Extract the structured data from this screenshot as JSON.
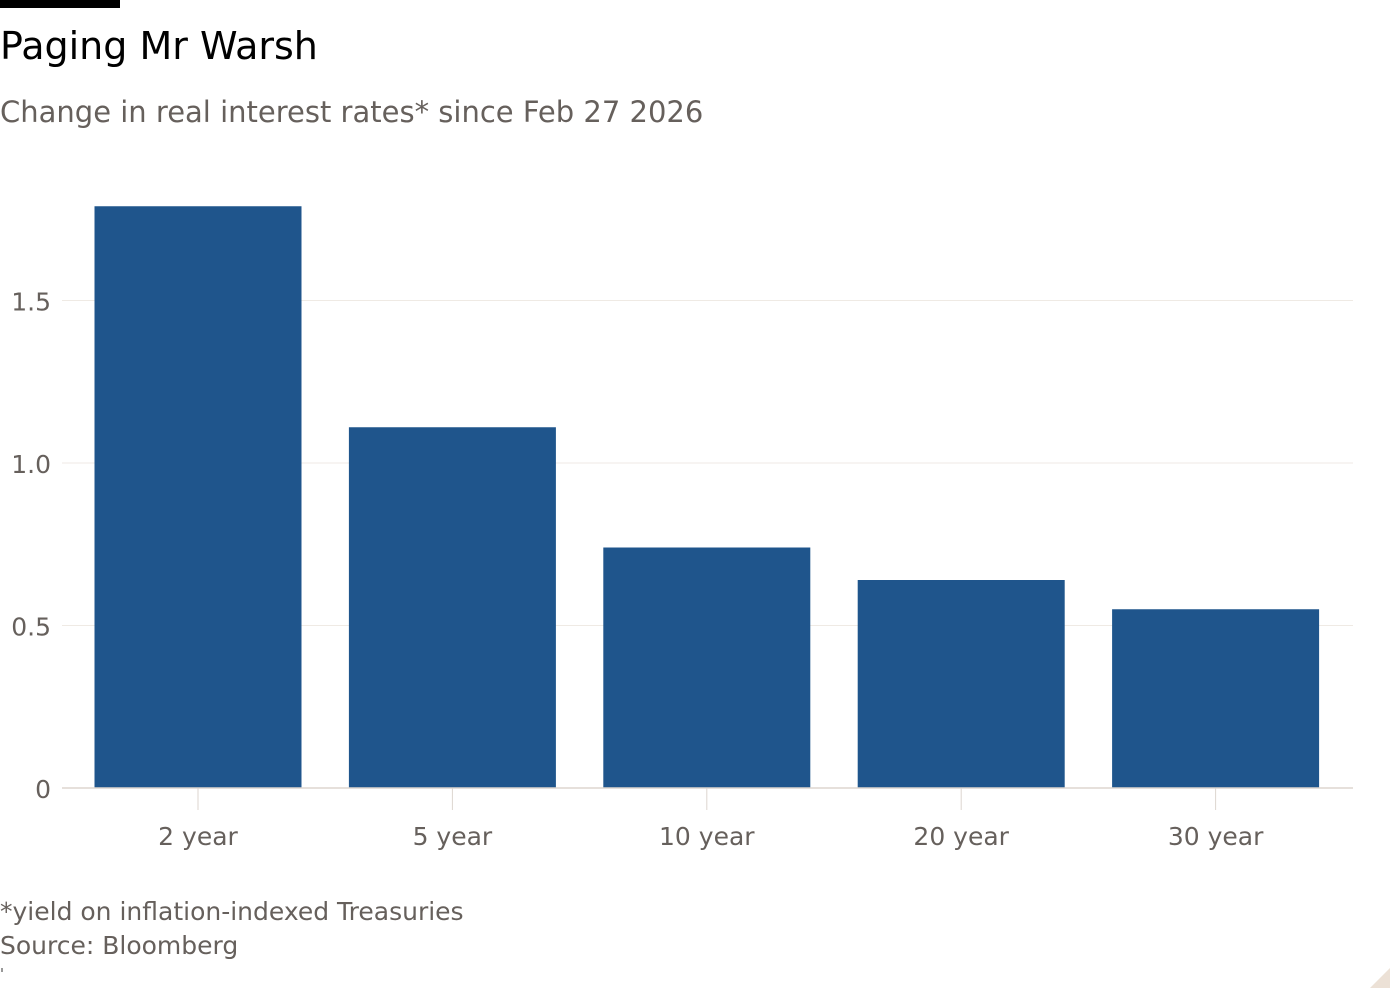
{
  "header": {
    "title": "Paging Mr Warsh",
    "subtitle": "Change in real interest rates* since Feb 27 2026"
  },
  "footer": {
    "footnote": "*yield on inflation-indexed Treasuries",
    "source": "Source: Bloomberg"
  },
  "colors": {
    "bar": "#1f558c",
    "grid": "#efeae4",
    "axis": "#ddd6cf",
    "tick_text": "#66605c"
  },
  "chart_data": {
    "type": "bar",
    "title": "Paging Mr Warsh",
    "subtitle": "Change in real interest rates* since Feb 27 2026",
    "categories": [
      "2 year",
      "5 year",
      "10 year",
      "20 year",
      "30 year"
    ],
    "values": [
      1.79,
      1.11,
      0.74,
      0.64,
      0.55
    ],
    "ylim": [
      0,
      1.8
    ],
    "yticks": [
      0,
      0.5,
      1.0,
      1.5
    ],
    "ytick_labels": [
      "0",
      "0.5",
      "1.0",
      "1.5"
    ],
    "xlabel": "",
    "ylabel": "",
    "grid": true
  }
}
